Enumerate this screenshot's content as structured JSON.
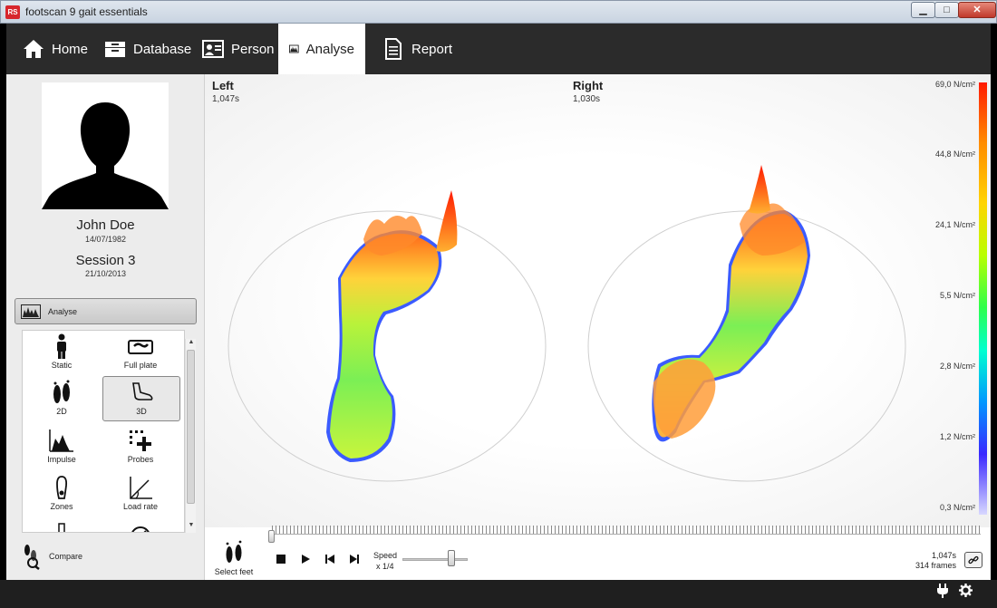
{
  "window": {
    "title": "footscan 9 gait essentials",
    "icon_text": "RS"
  },
  "nav": {
    "items": [
      {
        "label": "Home",
        "icon": "home-icon"
      },
      {
        "label": "Database",
        "icon": "database-icon"
      },
      {
        "label": "Person",
        "icon": "person-card-icon"
      },
      {
        "label": "Analyse",
        "icon": "analyse-icon",
        "active": true
      },
      {
        "label": "Report",
        "icon": "report-icon"
      }
    ]
  },
  "person": {
    "name": "John Doe",
    "dob": "14/07/1982",
    "session": "Session 3",
    "session_date": "21/10/2013"
  },
  "sidebar": {
    "section_label": "Analyse",
    "tools": [
      {
        "label": "Static",
        "icon": "standing-person-icon"
      },
      {
        "label": "Full plate",
        "icon": "full-plate-icon"
      },
      {
        "label": "2D",
        "icon": "feet-2d-icon"
      },
      {
        "label": "3D",
        "icon": "foot-3d-icon",
        "selected": true
      },
      {
        "label": "Impulse",
        "icon": "impulse-chart-icon"
      },
      {
        "label": "Probes",
        "icon": "probes-icon"
      },
      {
        "label": "Zones",
        "icon": "zones-icon"
      },
      {
        "label": "Load rate",
        "icon": "load-rate-icon"
      }
    ],
    "compare_label": "Compare"
  },
  "viz": {
    "left": {
      "label": "Left",
      "time": "1,047s"
    },
    "right": {
      "label": "Right",
      "time": "1,030s"
    },
    "scale": {
      "labels": [
        "69,0 N/cm²",
        "44,8 N/cm²",
        "24,1 N/cm²",
        "5,5 N/cm²",
        "2,8 N/cm²",
        "1,2 N/cm²",
        "0,3 N/cm²"
      ],
      "colors": {
        "high": "#ff1a00",
        "mid": "#ffd400",
        "low": "#2dff4a",
        "lowest": "#3a28ff"
      }
    }
  },
  "playback": {
    "select_feet_label": "Select feet",
    "speed_label": "Speed",
    "speed_value": "x 1/4",
    "time": "1,047s",
    "frames": "314 frames",
    "position": 0,
    "speed_level": 0.75
  }
}
